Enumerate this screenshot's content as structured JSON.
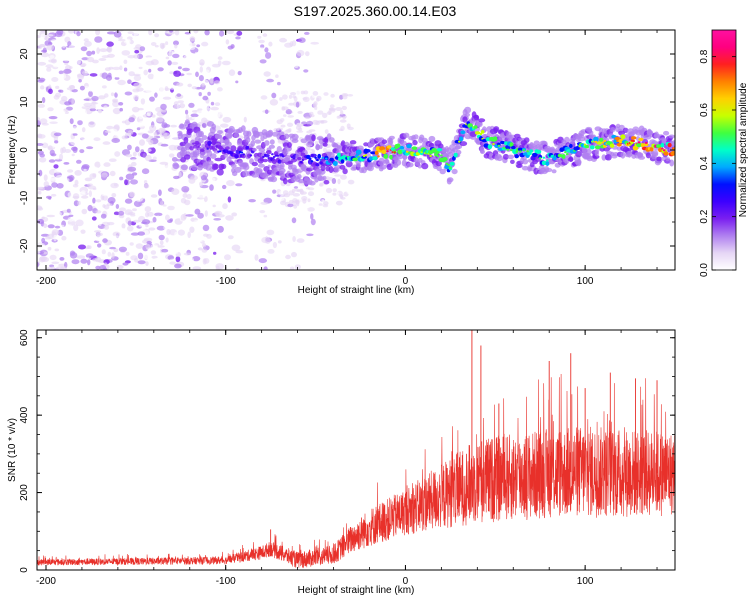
{
  "figure_title": "S197.2025.360.00.14.E03",
  "colors": {
    "snr_line": "#e8302a",
    "frame": "#000000",
    "spectro_bg": "#ffffff",
    "colorbar_stops": [
      "#ffffff",
      "#e6d6f5",
      "#b080f0",
      "#7a1ff0",
      "#3c00ff",
      "#0010ff",
      "#00aaff",
      "#00ffc8",
      "#40ff40",
      "#c8ff00",
      "#ffd000",
      "#ff8000",
      "#ff2020",
      "#ff0080",
      "#ff10a0"
    ]
  },
  "chart_data": [
    {
      "type": "heatmap",
      "title": "Spectrogram",
      "xlabel": "Height of straight line (km)",
      "ylabel": "Frequency (Hz)",
      "xlim": [
        -205,
        150
      ],
      "ylim": [
        -25,
        25
      ],
      "xticks": [
        -200,
        -100,
        0,
        100
      ],
      "yticks": [
        -20,
        -10,
        0,
        10,
        20
      ],
      "colorbar": {
        "label": "Normalized spectral amplitude",
        "range": [
          0,
          0.9
        ],
        "ticks": [
          0.0,
          0.2,
          0.4,
          0.6,
          0.8
        ]
      },
      "ridge_center_hz": [
        {
          "x": -120,
          "y": 1
        },
        {
          "x": -100,
          "y": 0
        },
        {
          "x": -80,
          "y": -1
        },
        {
          "x": -60,
          "y": -2
        },
        {
          "x": -40,
          "y": -2
        },
        {
          "x": -20,
          "y": -1
        },
        {
          "x": 0,
          "y": 0
        },
        {
          "x": 20,
          "y": -1
        },
        {
          "x": 25,
          "y": -4
        },
        {
          "x": 30,
          "y": 2
        },
        {
          "x": 35,
          "y": 6
        },
        {
          "x": 45,
          "y": 2
        },
        {
          "x": 60,
          "y": 0
        },
        {
          "x": 80,
          "y": -2
        },
        {
          "x": 100,
          "y": 1
        },
        {
          "x": 120,
          "y": 2
        },
        {
          "x": 150,
          "y": 0
        }
      ],
      "ridge_peak_amplitude": [
        {
          "x": -120,
          "y": 0.15
        },
        {
          "x": -100,
          "y": 0.3
        },
        {
          "x": -80,
          "y": 0.25
        },
        {
          "x": -60,
          "y": 0.25
        },
        {
          "x": -40,
          "y": 0.4
        },
        {
          "x": -20,
          "y": 0.55
        },
        {
          "x": -10,
          "y": 0.8
        },
        {
          "x": 0,
          "y": 0.6
        },
        {
          "x": 20,
          "y": 0.5
        },
        {
          "x": 40,
          "y": 0.55
        },
        {
          "x": 60,
          "y": 0.5
        },
        {
          "x": 80,
          "y": 0.45
        },
        {
          "x": 100,
          "y": 0.55
        },
        {
          "x": 120,
          "y": 0.7
        },
        {
          "x": 140,
          "y": 0.85
        },
        {
          "x": 150,
          "y": 0.75
        }
      ]
    },
    {
      "type": "line",
      "title": "SNR",
      "xlabel": "Height of straight line (km)",
      "ylabel": "SNR (10 * v/v)",
      "xlim": [
        -205,
        150
      ],
      "ylim": [
        0,
        620
      ],
      "xticks": [
        -200,
        -100,
        0,
        100
      ],
      "yticks": [
        0,
        200,
        400,
        600
      ],
      "series": [
        {
          "name": "SNR",
          "envelope_mean": [
            {
              "x": -205,
              "y": 20
            },
            {
              "x": -150,
              "y": 22
            },
            {
              "x": -100,
              "y": 25
            },
            {
              "x": -80,
              "y": 45
            },
            {
              "x": -75,
              "y": 55
            },
            {
              "x": -60,
              "y": 25
            },
            {
              "x": -40,
              "y": 40
            },
            {
              "x": -30,
              "y": 80
            },
            {
              "x": -20,
              "y": 110
            },
            {
              "x": 0,
              "y": 150
            },
            {
              "x": 20,
              "y": 190
            },
            {
              "x": 40,
              "y": 230
            },
            {
              "x": 60,
              "y": 240
            },
            {
              "x": 80,
              "y": 250
            },
            {
              "x": 100,
              "y": 255
            },
            {
              "x": 120,
              "y": 250
            },
            {
              "x": 150,
              "y": 250
            }
          ],
          "envelope_spread": [
            {
              "x": -205,
              "y": 8
            },
            {
              "x": -100,
              "y": 10
            },
            {
              "x": -75,
              "y": 20
            },
            {
              "x": -40,
              "y": 25
            },
            {
              "x": -20,
              "y": 50
            },
            {
              "x": 0,
              "y": 60
            },
            {
              "x": 40,
              "y": 110
            },
            {
              "x": 100,
              "y": 120
            },
            {
              "x": 150,
              "y": 110
            }
          ],
          "peaks": [
            {
              "x": -75,
              "y": 105
            },
            {
              "x": 37,
              "y": 620
            },
            {
              "x": 42,
              "y": 580
            },
            {
              "x": 52,
              "y": 430
            },
            {
              "x": 80,
              "y": 540
            },
            {
              "x": 92,
              "y": 560
            },
            {
              "x": 100,
              "y": 470
            },
            {
              "x": 114,
              "y": 510
            },
            {
              "x": 128,
              "y": 495
            },
            {
              "x": 140,
              "y": 490
            }
          ]
        }
      ]
    }
  ]
}
